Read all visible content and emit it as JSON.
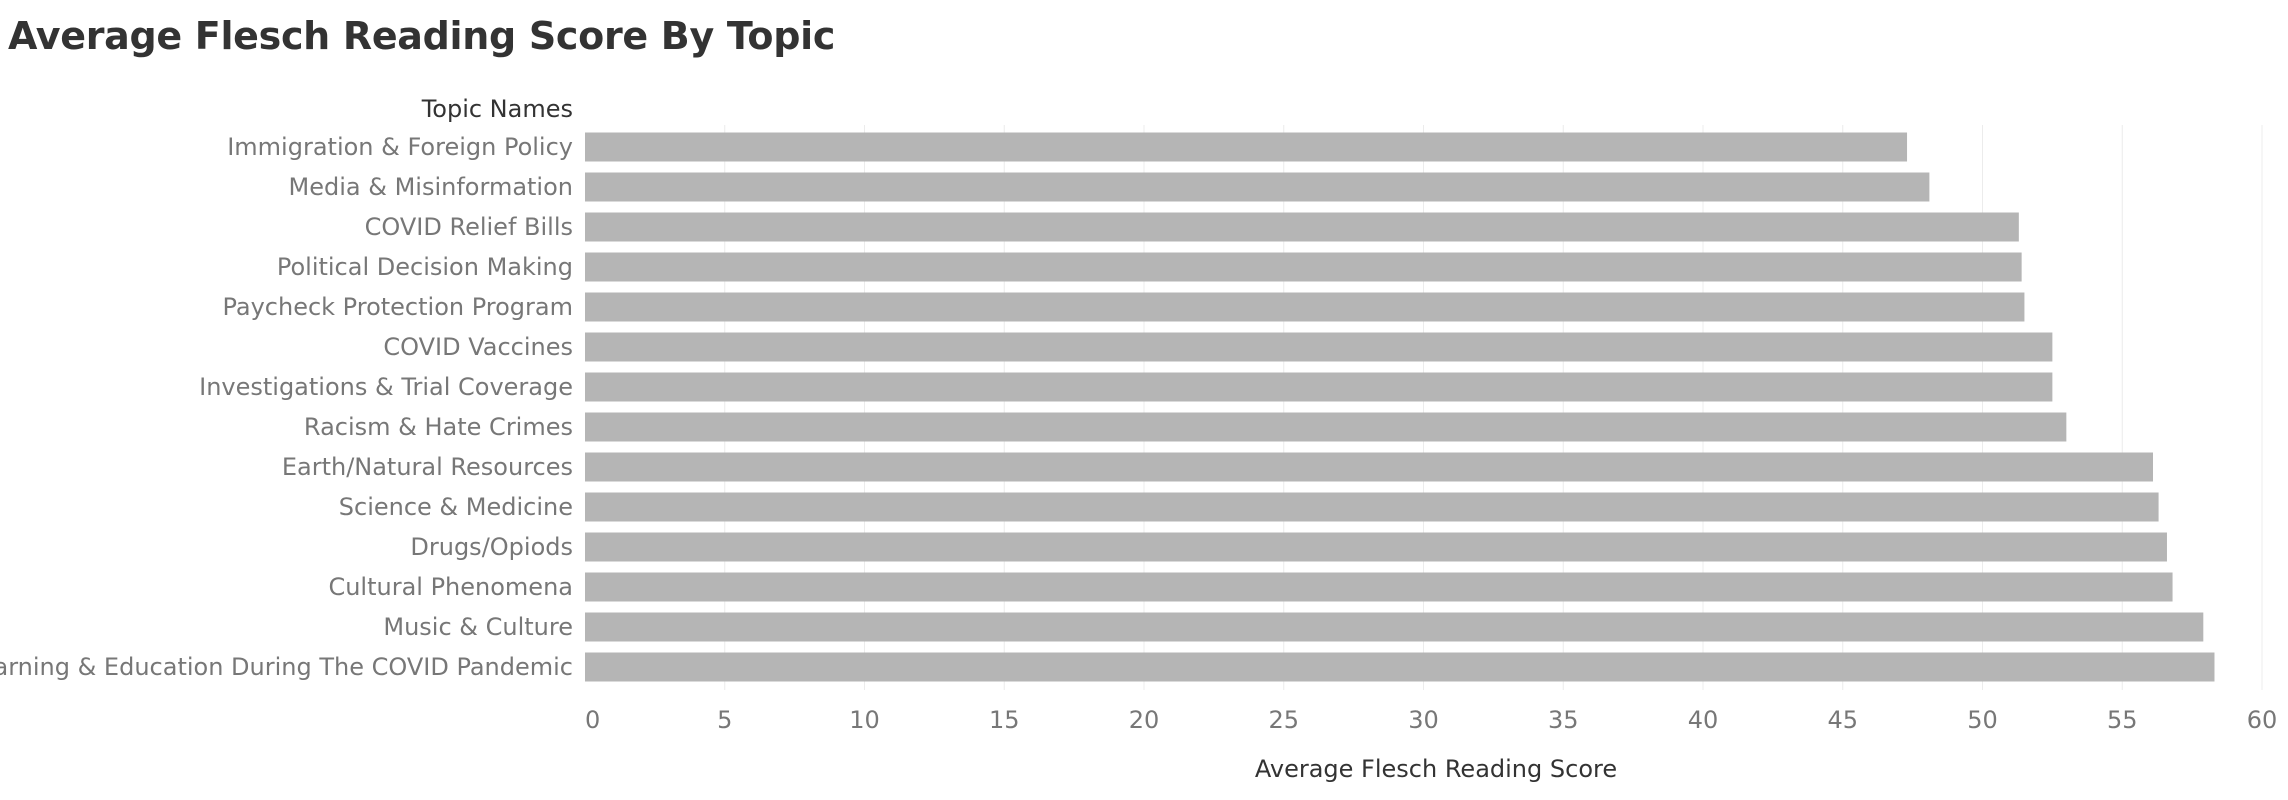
{
  "chart_data": {
    "type": "bar",
    "orientation": "horizontal",
    "title": "Average Flesch Reading Score By Topic",
    "ylabel": "Topic Names",
    "xlabel": "Average Flesch Reading Score",
    "xlim": [
      0,
      60
    ],
    "xticks": [
      0,
      5,
      10,
      15,
      20,
      25,
      30,
      35,
      40,
      45,
      50,
      55,
      60
    ],
    "grid": true,
    "categories": [
      "Immigration & Foreign Policy",
      "Media & Misinformation",
      "COVID Relief Bills",
      "Political Decision Making",
      "Paycheck Protection Program",
      "COVID Vaccines",
      "Investigations & Trial Coverage",
      "Racism & Hate Crimes",
      "Earth/Natural Resources",
      "Science & Medicine",
      "Drugs/Opiods",
      "Cultural Phenomena",
      "Music & Culture",
      "Learning & Education During The COVID Pandemic"
    ],
    "values": [
      47.3,
      48.1,
      51.3,
      51.4,
      51.5,
      52.5,
      52.5,
      53.0,
      56.1,
      56.3,
      56.6,
      56.8,
      57.9,
      58.3
    ],
    "bar_color": "#b5b5b5",
    "grid_color": "#ececec",
    "label_color": "#777777",
    "title_color": "#333333",
    "axis_title_color": "#333333"
  }
}
